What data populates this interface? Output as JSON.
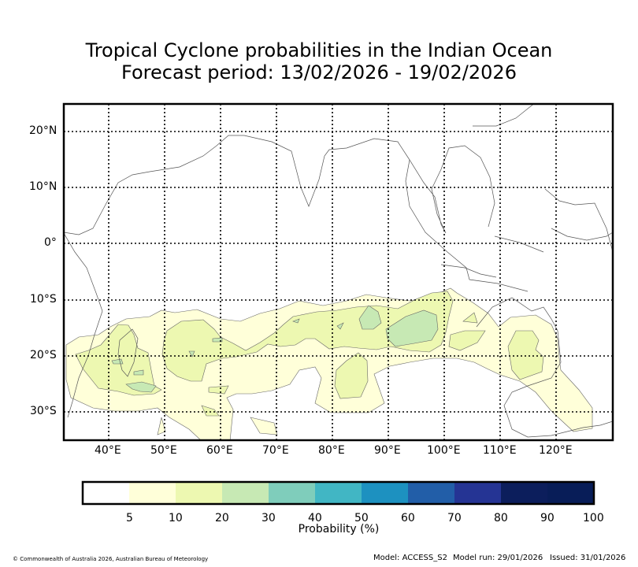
{
  "title": {
    "line1": "Tropical Cyclone probabilities in the Indian Ocean",
    "line2": "Forecast period: 13/02/2026 - 19/02/2026"
  },
  "map": {
    "lat_labels": [
      "20°N",
      "10°N",
      "0°",
      "10°S",
      "20°S",
      "30°S"
    ],
    "lon_labels": [
      "40°E",
      "50°E",
      "60°E",
      "70°E",
      "80°E",
      "90°E",
      "100°E",
      "110°E",
      "120°E"
    ]
  },
  "colorbar": {
    "label": "Probability (%)",
    "ticks": [
      "5",
      "10",
      "20",
      "30",
      "40",
      "50",
      "60",
      "70",
      "80",
      "90",
      "100"
    ],
    "colors": [
      "#ffffff",
      "#ffffd9",
      "#edf8b1",
      "#c7e9b4",
      "#7fcdbb",
      "#41b6c4",
      "#1d91c0",
      "#225ea8",
      "#253494",
      "#0c1e5c",
      "#081d58"
    ]
  },
  "footer": {
    "copyright": "© Commonwealth of Australia 2026, Australian Bureau of Meteorology",
    "model": "Model: ACCESS_S2",
    "model_run": "Model run: 29/01/2026",
    "issued": "Issued: 31/01/2026"
  }
}
